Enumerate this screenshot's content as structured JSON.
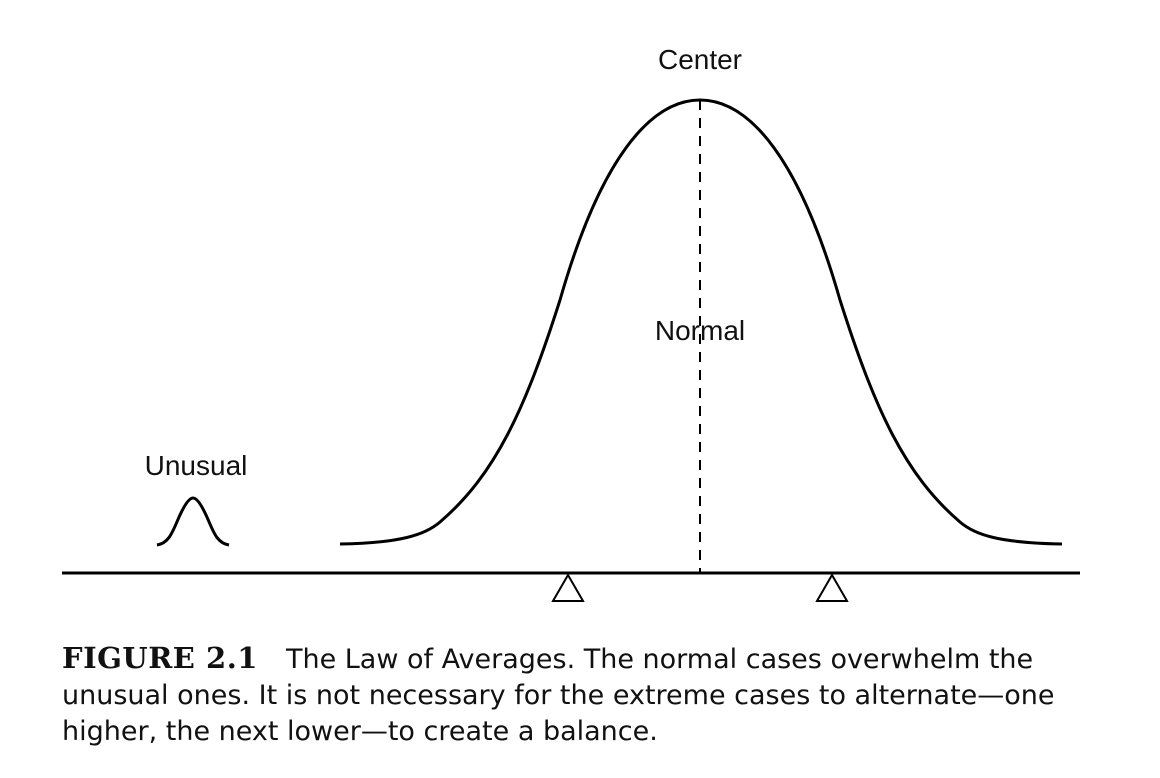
{
  "labels": {
    "center": "Center",
    "normal": "Normal",
    "unusual": "Unusual"
  },
  "caption": {
    "figure_number": "FIGURE 2.1",
    "text": "The Law of Averages. The normal cases overwhelm the unusual ones. It is not necessary for the extreme cases to alternate—one higher, the next lower—to create a balance."
  },
  "colors": {
    "ink": "#000000",
    "text": "#111111",
    "background": "#ffffff"
  }
}
